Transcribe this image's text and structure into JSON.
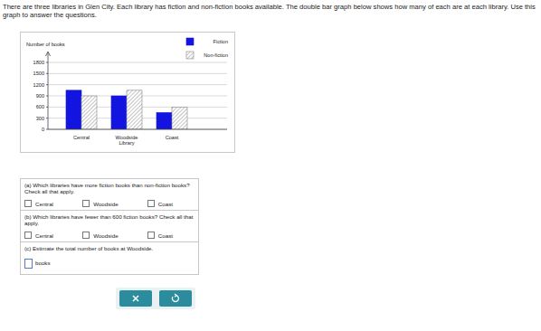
{
  "intro": "There are three libraries in Glen City. Each library has fiction and non-fiction books available. The double bar graph below shows how many of each are at each library. Use this graph to answer the questions.",
  "chart_data": {
    "type": "bar",
    "y_label": "Number of books",
    "x_label": "Library",
    "categories": [
      "Central",
      "Woodside",
      "Coast"
    ],
    "series": [
      {
        "name": "Fiction",
        "color": "#1414e0",
        "values": [
          1050,
          900,
          450
        ]
      },
      {
        "name": "Non-fiction",
        "color": "#d9d9d9",
        "values": [
          900,
          1050,
          600
        ]
      }
    ],
    "ylim": [
      0,
      1800
    ],
    "yticks": [
      0,
      300,
      600,
      900,
      1200,
      1500,
      1800
    ],
    "grid": true,
    "legend": "top-right"
  },
  "questions": [
    {
      "label": "(a) Which libraries have more fiction books than non-fiction books? Check all that apply.",
      "options": [
        "Central",
        "Woodside",
        "Coast"
      ]
    },
    {
      "label": "(b) Which libraries have fewer than 600 fiction books? Check all that apply.",
      "options": [
        "Central",
        "Woodside",
        "Coast"
      ]
    },
    {
      "label": "(c) Estimate the total number of books at Woodside.",
      "unit": "books"
    }
  ]
}
